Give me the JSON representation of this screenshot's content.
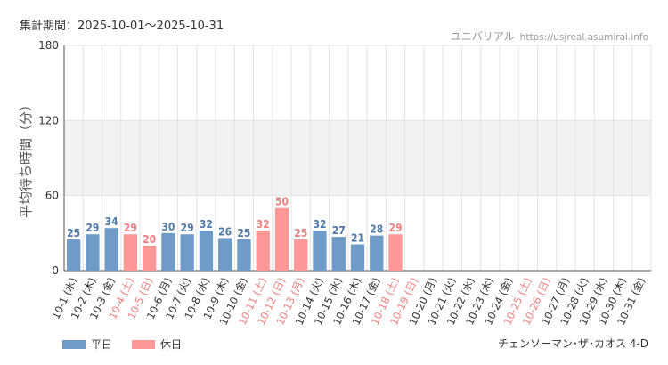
{
  "header": {
    "period": "集計期間：2025-10-01～2025-10-31",
    "site_name": "ユニバリアル",
    "site_url": "https://usjreal.asumirai.info"
  },
  "footer": {
    "attraction": "チェンソーマン･ザ･カオス 4-D"
  },
  "colors": {
    "weekday": "#6e9bc8",
    "holiday": "#ff9797",
    "weekday_label": "#4f79a8",
    "holiday_label": "#f08080",
    "band": "#f2f2f2",
    "grid": "#e3e3e3"
  },
  "chart_data": {
    "type": "bar",
    "ylabel": "平均待ち時間（分）",
    "ylim": [
      0,
      180
    ],
    "yticks": [
      0,
      60,
      120,
      180
    ],
    "legend": [
      {
        "name": "平日",
        "key": "weekday"
      },
      {
        "name": "休日",
        "key": "holiday"
      }
    ],
    "categories": [
      "10-1 (水)",
      "10-2 (木)",
      "10-3 (金)",
      "10-4 (土)",
      "10-5 (日)",
      "10-6 (月)",
      "10-7 (火)",
      "10-8 (水)",
      "10-9 (木)",
      "10-10 (金)",
      "10-11 (土)",
      "10-12 (日)",
      "10-13 (月)",
      "10-14 (火)",
      "10-15 (水)",
      "10-16 (木)",
      "10-17 (金)",
      "10-18 (土)",
      "10-19 (日)",
      "10-20 (月)",
      "10-21 (火)",
      "10-22 (水)",
      "10-23 (木)",
      "10-24 (金)",
      "10-25 (土)",
      "10-26 (日)",
      "10-27 (月)",
      "10-28 (火)",
      "10-29 (水)",
      "10-30 (木)",
      "10-31 (金)"
    ],
    "holiday": [
      false,
      false,
      false,
      true,
      true,
      false,
      false,
      false,
      false,
      false,
      true,
      true,
      true,
      false,
      false,
      false,
      false,
      true,
      true,
      false,
      false,
      false,
      false,
      false,
      true,
      true,
      false,
      false,
      false,
      false,
      false
    ],
    "values": [
      25,
      29,
      34,
      29,
      20,
      30,
      29,
      32,
      26,
      25,
      32,
      50,
      25,
      32,
      27,
      21,
      28,
      29,
      null,
      null,
      null,
      null,
      null,
      null,
      null,
      null,
      null,
      null,
      null,
      null,
      null
    ]
  }
}
